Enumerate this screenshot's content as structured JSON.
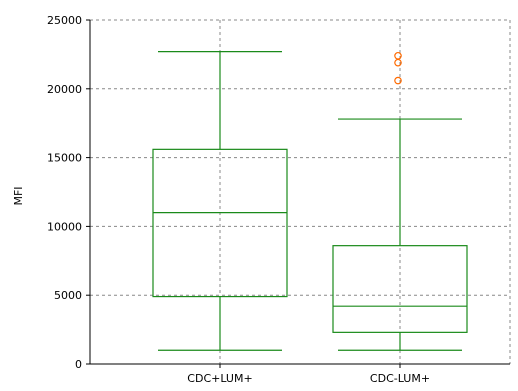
{
  "chart_data": {
    "type": "box",
    "ylabel": "MFI",
    "xlabel": "",
    "ylim": [
      0,
      25000
    ],
    "yticks": [
      0,
      5000,
      10000,
      15000,
      20000,
      25000
    ],
    "grid": true,
    "categories": [
      "CDC+LUM+",
      "CDC-LUM+"
    ],
    "boxes": [
      {
        "category": "CDC+LUM+",
        "min": 1000,
        "q1": 4900,
        "median": 11000,
        "q3": 15600,
        "max": 22700,
        "outliers": []
      },
      {
        "category": "CDC-LUM+",
        "min": 1000,
        "q1": 2300,
        "median": 4200,
        "q3": 8600,
        "max": 17800,
        "outliers": [
          20600,
          21900,
          22400
        ]
      }
    ],
    "colors": {
      "box": "#1a8a1a",
      "outlier": "#ff6a00",
      "grid": "#888888",
      "axis": "#000000"
    }
  }
}
